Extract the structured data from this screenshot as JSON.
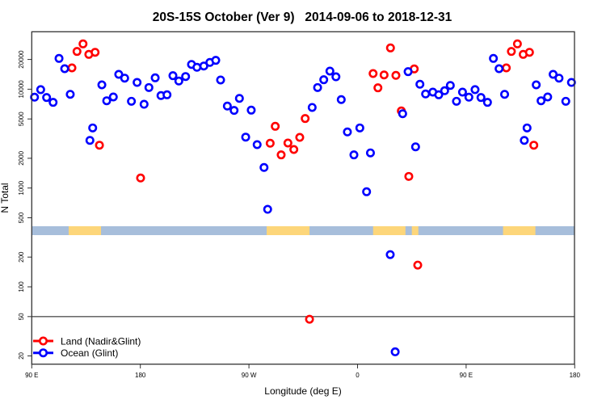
{
  "chart_data": {
    "type": "scatter",
    "title": "20S-15S October (Ver 9)   2014-09-06 to 2018-12-31",
    "xlabel": "Longitude (deg E)",
    "ylabel": "N Total",
    "y_scale": "log (broken axis)",
    "x_axis_span": "90E to 180, wrapping past 360 degrees",
    "x_ticks": [
      {
        "lon": 90,
        "label": "90 E"
      },
      {
        "lon": 180,
        "label": "180"
      },
      {
        "lon": 270,
        "label": "90 W"
      },
      {
        "lon": 360,
        "label": "0"
      },
      {
        "lon": 450,
        "label": "90 E"
      },
      {
        "lon": 540,
        "label": "180"
      }
    ],
    "y_ticks": [
      {
        "value": 20000,
        "label": "20000"
      },
      {
        "value": 10000,
        "label": "10000"
      },
      {
        "value": 5000,
        "label": "5000"
      },
      {
        "value": 2000,
        "label": "2000"
      },
      {
        "value": 1000,
        "label": "1000"
      },
      {
        "value": 500,
        "label": "500"
      },
      {
        "value": 200,
        "label": "200"
      },
      {
        "value": 100,
        "label": "100"
      },
      {
        "value": 50,
        "label": "50"
      },
      {
        "value": 20,
        "label": "20"
      }
    ],
    "reference_line": 50,
    "legend": {
      "placement": "bottom-left"
    },
    "surface_strip": {
      "ocean_color": "#a7bedb",
      "land_color": "#fdd67a",
      "land_ranges_lon": [
        [
          120.6,
          147.4
        ],
        [
          -75.3,
          -39.8
        ],
        [
          12.9,
          39.7
        ],
        [
          45.0,
          50.4
        ]
      ]
    },
    "series": [
      {
        "name": "Land (Nadir&Glint)",
        "color": "#ff0000",
        "points": [
          [
            123.3,
            16440
          ],
          [
            127.5,
            24100
          ],
          [
            132.5,
            28750
          ],
          [
            137.3,
            22510
          ],
          [
            142.5,
            23640
          ],
          [
            146.1,
            2713
          ],
          [
            -179.8,
            1263
          ],
          [
            -68.2,
            4214
          ],
          [
            -72.4,
            2838
          ],
          [
            -63.3,
            2165
          ],
          [
            -57.7,
            2854
          ],
          [
            -52.8,
            2455
          ],
          [
            -47.9,
            3256
          ],
          [
            -43.4,
            5050
          ],
          [
            -39.8,
            47
          ],
          [
            12.9,
            14410
          ],
          [
            16.9,
            10330
          ],
          [
            22.0,
            13950
          ],
          [
            27.3,
            26170
          ],
          [
            31.8,
            13800
          ],
          [
            36.3,
            6030
          ],
          [
            42.5,
            1311
          ],
          [
            47.0,
            16040
          ],
          [
            49.9,
            166
          ]
        ]
      },
      {
        "name": "Ocean (Glint)",
        "color": "#0000ff",
        "points": [
          [
            92.3,
            8300
          ],
          [
            97.4,
            9900
          ],
          [
            102.3,
            8240
          ],
          [
            107.7,
            7360
          ],
          [
            112.6,
            20490
          ],
          [
            117.3,
            16130
          ],
          [
            121.9,
            8880
          ],
          [
            138.2,
            3036
          ],
          [
            140.5,
            4057
          ],
          [
            148.1,
            11070
          ],
          [
            152.1,
            7640
          ],
          [
            157.6,
            8350
          ],
          [
            162.1,
            14140
          ],
          [
            167.0,
            12940
          ],
          [
            172.6,
            7550
          ],
          [
            177.3,
            11710
          ],
          [
            -176.9,
            7040
          ],
          [
            -172.9,
            10400
          ],
          [
            -167.7,
            13040
          ],
          [
            -162.9,
            8620
          ],
          [
            -157.9,
            8780
          ],
          [
            -153.0,
            13700
          ],
          [
            -148.1,
            12100
          ],
          [
            -142.5,
            13440
          ],
          [
            -137.6,
            17820
          ],
          [
            -133.1,
            16660
          ],
          [
            -127.4,
            17170
          ],
          [
            -122.4,
            18650
          ],
          [
            -117.5,
            19590
          ],
          [
            -113.5,
            12400
          ],
          [
            -107.9,
            6750
          ],
          [
            -102.3,
            6100
          ],
          [
            -97.9,
            8080
          ],
          [
            -92.7,
            3275
          ],
          [
            -88.1,
            6140
          ],
          [
            -83.2,
            2750
          ],
          [
            -77.5,
            1614
          ],
          [
            -74.5,
            609
          ],
          [
            -37.6,
            6540
          ],
          [
            -33.1,
            10400
          ],
          [
            -28.0,
            12470
          ],
          [
            -22.9,
            15250
          ],
          [
            -17.9,
            13360
          ],
          [
            -13.5,
            7850
          ],
          [
            -8.4,
            3694
          ],
          [
            -3.0,
            2165
          ],
          [
            1.9,
            4057
          ],
          [
            7.5,
            917
          ],
          [
            10.7,
            2268
          ],
          [
            27.1,
            212
          ],
          [
            31.2,
            22
          ],
          [
            37.4,
            5650
          ],
          [
            41.9,
            15050
          ],
          [
            48.1,
            2612
          ],
          [
            51.7,
            11220
          ],
          [
            56.4,
            8950
          ],
          [
            62.4,
            9350
          ],
          [
            67.3,
            8780
          ],
          [
            72.2,
            9650
          ],
          [
            76.9,
            10920
          ],
          [
            82.0,
            7550
          ],
          [
            87.0,
            9350
          ]
        ]
      }
    ]
  }
}
